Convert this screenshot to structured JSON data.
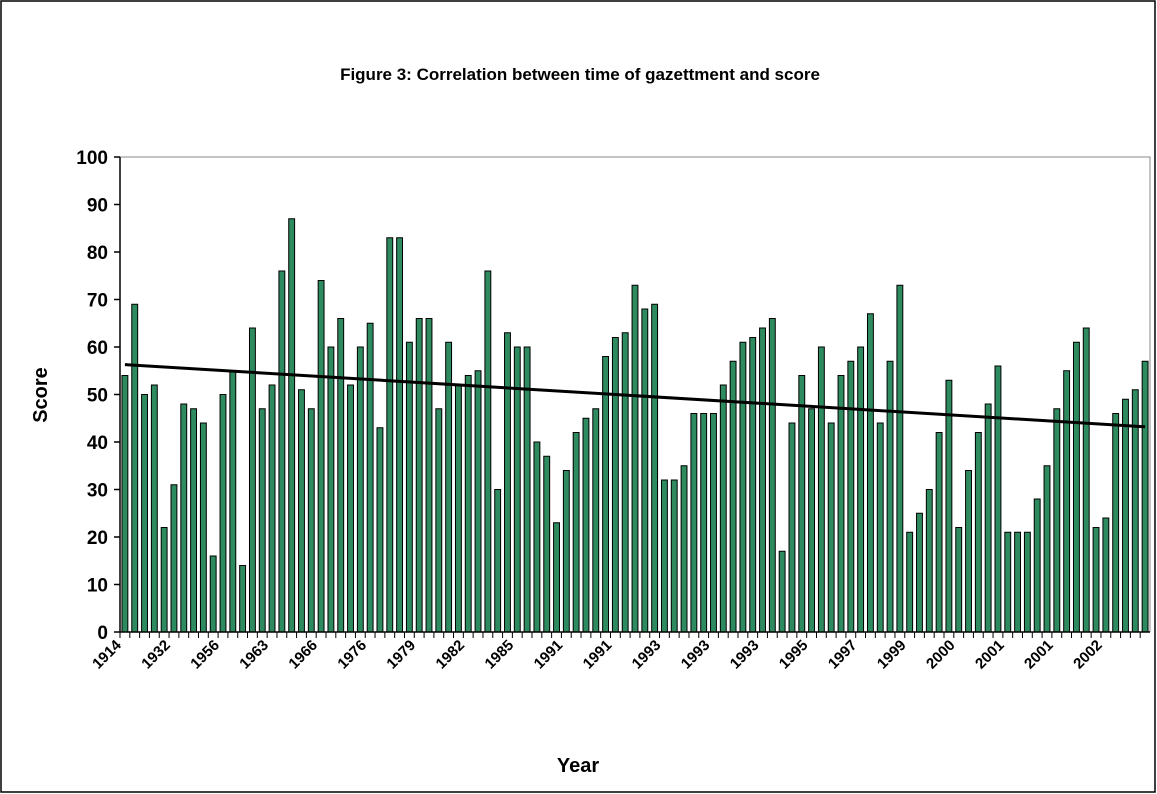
{
  "chart_data": {
    "type": "bar",
    "title": "Figure 3: Correlation between time of gazettment and score",
    "x_label": "Year",
    "y_label": "Score",
    "categories": [
      "1914",
      null,
      null,
      null,
      null,
      "1932",
      null,
      null,
      null,
      null,
      "1956",
      null,
      null,
      null,
      null,
      "1963",
      null,
      null,
      null,
      null,
      "1966",
      null,
      null,
      null,
      null,
      "1976",
      null,
      null,
      null,
      null,
      "1979",
      null,
      null,
      null,
      null,
      "1982",
      null,
      null,
      null,
      null,
      "1985",
      null,
      null,
      null,
      null,
      "1991",
      null,
      null,
      null,
      null,
      "1991",
      null,
      null,
      null,
      null,
      "1993",
      null,
      null,
      null,
      null,
      "1993",
      null,
      null,
      null,
      null,
      "1993",
      null,
      null,
      null,
      null,
      "1995",
      null,
      null,
      null,
      null,
      "1997",
      null,
      null,
      null,
      null,
      "1999",
      null,
      null,
      null,
      null,
      "2000",
      null,
      null,
      null,
      null,
      "2001",
      null,
      null,
      null,
      null,
      "2001",
      null,
      null,
      null,
      null,
      "2002",
      null,
      null,
      null,
      null
    ],
    "values": [
      54,
      69,
      50,
      52,
      22,
      31,
      48,
      47,
      44,
      16,
      50,
      55,
      14,
      64,
      47,
      52,
      76,
      87,
      51,
      47,
      74,
      60,
      66,
      52,
      60,
      65,
      43,
      83,
      83,
      61,
      66,
      66,
      47,
      61,
      52,
      54,
      55,
      76,
      30,
      63,
      60,
      60,
      40,
      37,
      23,
      34,
      42,
      45,
      47,
      58,
      62,
      63,
      73,
      68,
      69,
      32,
      32,
      35,
      46,
      46,
      46,
      52,
      57,
      61,
      62,
      64,
      66,
      17,
      44,
      54,
      47,
      60,
      44,
      54,
      57,
      60,
      67,
      44,
      57,
      73,
      21,
      25,
      30,
      42,
      53,
      22,
      34,
      42,
      48,
      56,
      21,
      21,
      21,
      28,
      35,
      47,
      55,
      61,
      64,
      22,
      24,
      46,
      49,
      51,
      57
    ],
    "color": "#2e8b5f",
    "trendline": [
      56.3,
      43.2
    ],
    "trendline_color": "#000000",
    "ylim": [
      0,
      100
    ],
    "yticks": [
      0,
      10,
      20,
      30,
      40,
      50,
      60,
      70,
      80,
      90,
      100
    ],
    "grid": false
  }
}
